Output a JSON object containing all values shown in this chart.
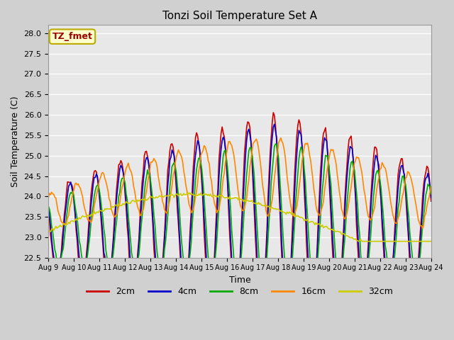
{
  "title": "Tonzi Soil Temperature Set A",
  "xlabel": "Time",
  "ylabel": "Soil Temperature (C)",
  "ylim": [
    22.5,
    28.2
  ],
  "annotation_text": "TZ_fmet",
  "annotation_bg": "#ffffcc",
  "annotation_border": "#bbaa00",
  "annotation_text_color": "#990000",
  "legend_labels": [
    "2cm",
    "4cm",
    "8cm",
    "16cm",
    "32cm"
  ],
  "legend_colors": [
    "#cc0000",
    "#0000cc",
    "#00aa00",
    "#ff8800",
    "#cccc00"
  ],
  "line_width": 1.2,
  "tick_labels": [
    "Aug 9",
    "Aug 10",
    "Aug 11",
    "Aug 12",
    "Aug 13",
    "Aug 14",
    "Aug 15",
    "Aug 16",
    "Aug 17",
    "Aug 18",
    "Aug 19",
    "Aug 20",
    "Aug 21",
    "Aug 22",
    "Aug 23",
    "Aug 24"
  ],
  "yticks": [
    22.5,
    23.0,
    23.5,
    24.0,
    24.5,
    25.0,
    25.5,
    26.0,
    26.5,
    27.0,
    27.5,
    28.0
  ],
  "fig_bg": "#d0d0d0",
  "plot_bg": "#e8e8e8"
}
